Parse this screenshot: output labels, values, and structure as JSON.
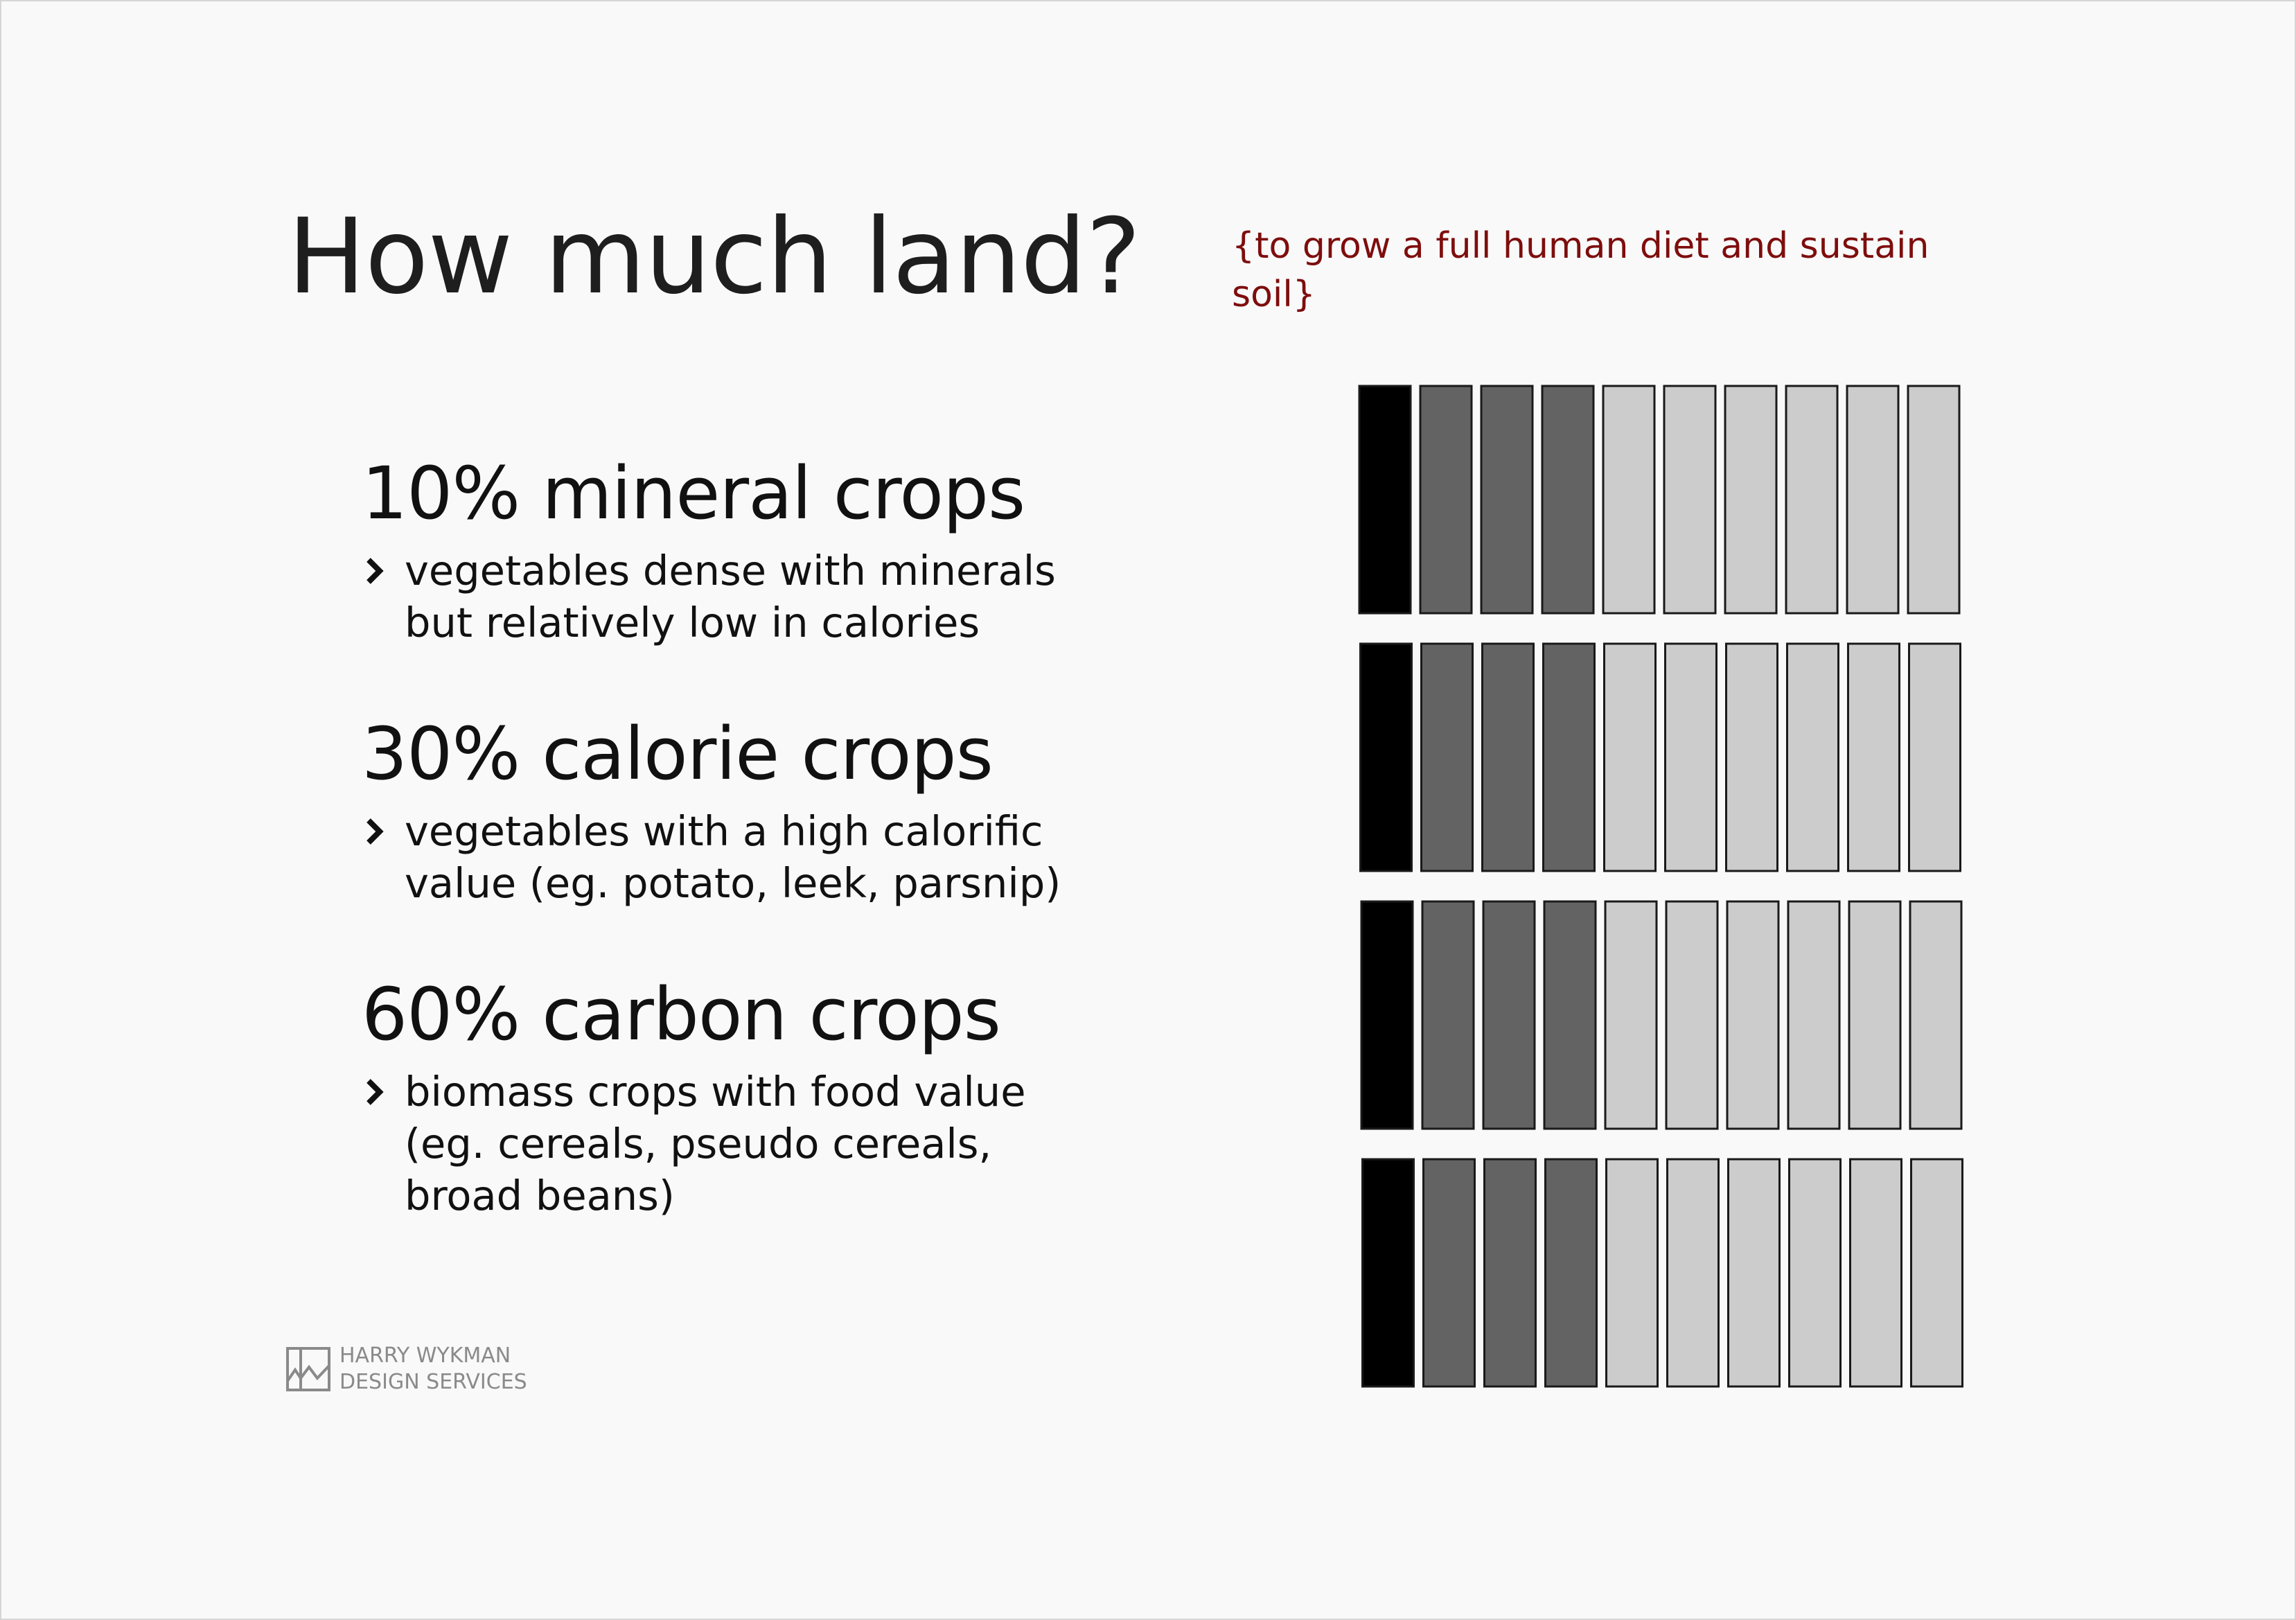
{
  "title": "How much land?",
  "subtitle": "{to grow a full human diet and sustain soil}",
  "entries": [
    {
      "heading": "10% mineral crops",
      "description": "vegetables dense with minerals\nbut relatively low in calories"
    },
    {
      "heading": "30% calorie crops",
      "description": "vegetables with a high calorific\nvalue (eg. potato, leek, parsnip)"
    },
    {
      "heading": "60% carbon crops",
      "description": "biomass crops with food value\n(eg. cereals, pseudo cereals,\nbroad beans)"
    }
  ],
  "logo": {
    "text": "HARRY WYKMAN\nDESIGN SERVICES"
  },
  "land_grid": {
    "rows": 4,
    "bars_per_row": 10,
    "segments": [
      {
        "name": "mineral",
        "count": 1,
        "color": "#000000"
      },
      {
        "name": "calorie",
        "count": 3,
        "color": "#636363"
      },
      {
        "name": "carbon",
        "count": 6,
        "color": "#cccccc"
      }
    ],
    "stroke_color": "#1a1a1a"
  },
  "colors": {
    "subtitle": "#7e0d0d",
    "background": "#f9f9f9"
  }
}
